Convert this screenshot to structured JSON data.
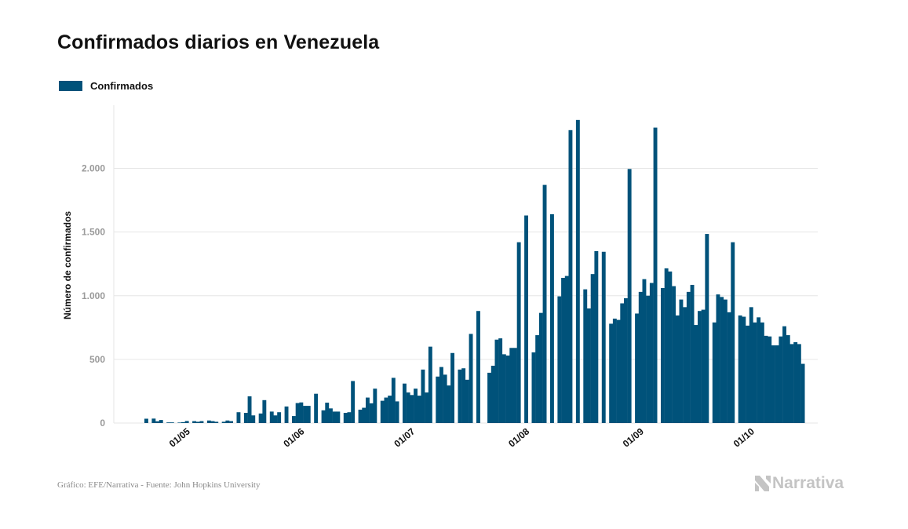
{
  "title": "Confirmados diarios en Venezuela",
  "source": "Gráfico: EFE/Narrativa - Fuente: John Hopkins University",
  "brand": {
    "name": "Narrativa",
    "icon": "narrativa-logo-icon"
  },
  "colors": {
    "bar": "#00527a",
    "grid": "#e6e6e6",
    "tick": "#9a9a9a",
    "axis_label": "#111111"
  },
  "chart_data": {
    "type": "bar",
    "legend": "Confirmados",
    "legend_position": "top-left",
    "ylabel": "Número de confirmados",
    "xlabel": "",
    "ylim": [
      0,
      2500
    ],
    "yticks": [
      0,
      500,
      1000,
      1500,
      2000
    ],
    "ytick_labels": [
      "0",
      "500",
      "1.000",
      "1.500",
      "2.000"
    ],
    "xtick_labels": [
      "01/05",
      "01/06",
      "01/07",
      "01/08",
      "01/09",
      "01/10"
    ],
    "grid": true,
    "dates_start": "2020-04-19",
    "values": [
      34,
      0,
      35,
      14,
      24,
      0,
      5,
      5,
      0,
      4,
      7,
      16,
      0,
      15,
      10,
      15,
      0,
      20,
      15,
      10,
      0,
      10,
      20,
      15,
      0,
      85,
      0,
      80,
      210,
      60,
      0,
      75,
      180,
      0,
      90,
      60,
      85,
      0,
      130,
      0,
      55,
      157,
      162,
      135,
      135,
      0,
      230,
      0,
      100,
      160,
      115,
      90,
      90,
      0,
      80,
      85,
      330,
      0,
      105,
      120,
      200,
      155,
      270,
      0,
      175,
      200,
      215,
      355,
      170,
      0,
      310,
      240,
      220,
      270,
      215,
      420,
      240,
      600,
      0,
      365,
      440,
      380,
      295,
      550,
      0,
      420,
      430,
      340,
      700,
      0,
      880,
      0,
      0,
      395,
      450,
      655,
      665,
      540,
      530,
      590,
      590,
      1420,
      0,
      1630,
      0,
      555,
      690,
      865,
      1870,
      0,
      1640,
      0,
      995,
      1140,
      1155,
      2300,
      0,
      2380,
      0,
      1050,
      900,
      1170,
      1350,
      0,
      1345,
      0,
      780,
      820,
      810,
      940,
      980,
      1995,
      0,
      860,
      1030,
      1130,
      1000,
      1100,
      2320,
      0,
      1060,
      1215,
      1190,
      1075,
      845,
      970,
      910,
      1030,
      1085,
      770,
      880,
      890,
      1485,
      0,
      790,
      1010,
      990,
      970,
      870,
      1420,
      0,
      845,
      835,
      765,
      910,
      790,
      830,
      790,
      685,
      680,
      610,
      610,
      680,
      760,
      690,
      620,
      635,
      620,
      465
    ]
  }
}
